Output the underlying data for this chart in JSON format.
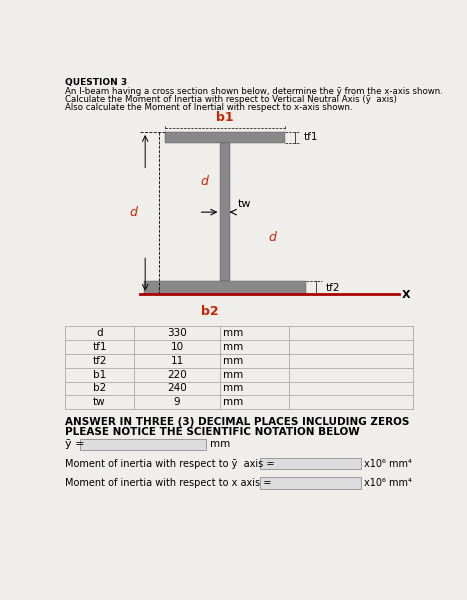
{
  "title": "QUESTION 3",
  "line1": "An I-beam having a cross section shown below, determine the ",
  "line1b": "y",
  "line1c": " from the x-axis shown.",
  "line2": "Calculate the Moment of Inertia with respect to Vertical Neutral Axis (ȳ  axis)",
  "line3": "Also calculate the Moment of Inertial with respect to x-axis shown.",
  "beam_color": "#888888",
  "x_axis_color": "#aa0000",
  "dim_color_red": "#cc2200",
  "table_data": [
    [
      "d",
      "330",
      "mm"
    ],
    [
      "tf1",
      "10",
      "mm"
    ],
    [
      "tf2",
      "11",
      "mm"
    ],
    [
      "b1",
      "220",
      "mm"
    ],
    [
      "b2",
      "240",
      "mm"
    ],
    [
      "tw",
      "9",
      "mm"
    ]
  ],
  "answer_header1": "ANSWER IN THREE (3) DECIMAL PLACES INCLUDING ZEROS",
  "answer_header2": "PLEASE NOTICE THE SCIENTIFIC NOTATION BELOW",
  "bg_color": "#f0eeeb",
  "bg_color2": "#ffffff"
}
